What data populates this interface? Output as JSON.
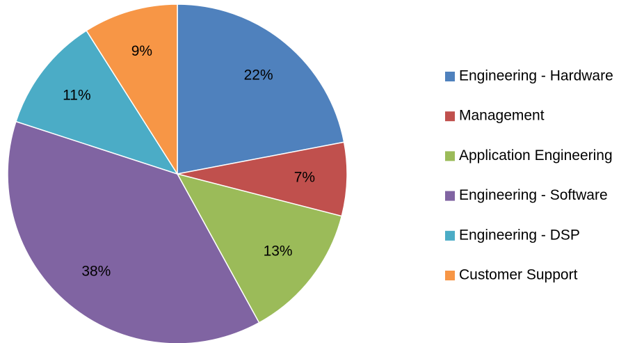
{
  "chart_data": {
    "type": "pie",
    "categories": [
      "Engineering - Hardware",
      "Management",
      "Application Engineering",
      "Engineering - Software",
      "Engineering - DSP",
      "Customer Support"
    ],
    "values": [
      22,
      7,
      13,
      38,
      11,
      9
    ],
    "value_labels": [
      "22%",
      "7%",
      "13%",
      "38%",
      "11%",
      "9%"
    ],
    "colors": [
      "#4f81bd",
      "#c0504d",
      "#9bbb59",
      "#8064a2",
      "#4bacc6",
      "#f79646"
    ],
    "legend": "right"
  }
}
